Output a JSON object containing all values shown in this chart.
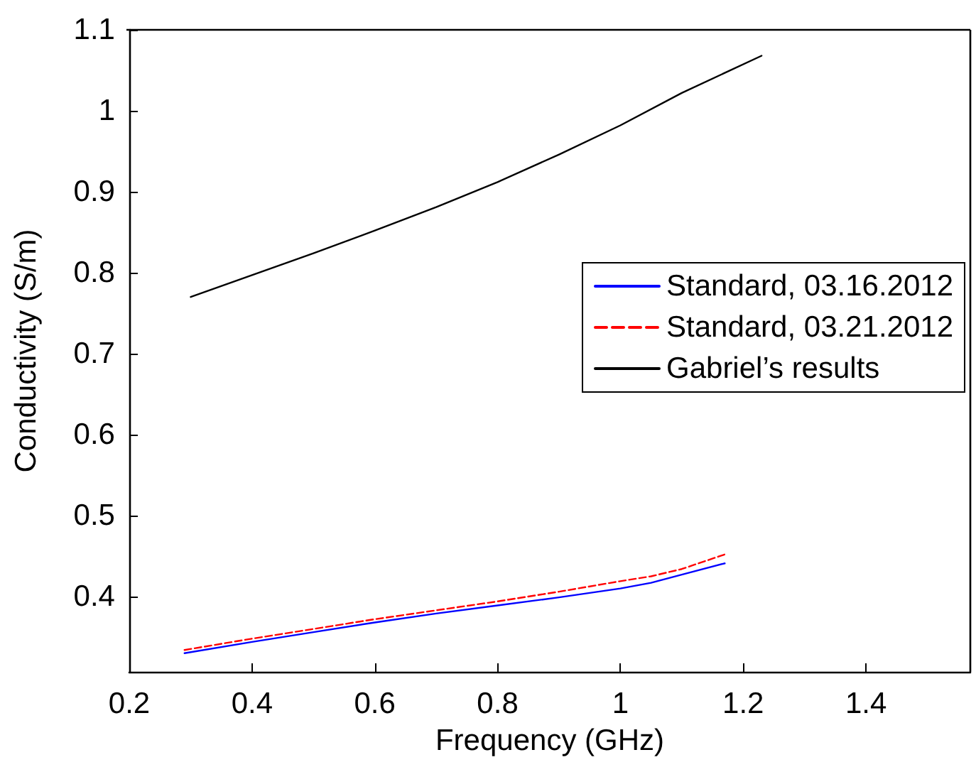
{
  "chart_data": {
    "type": "line",
    "xlabel": "Frequency (GHz)",
    "ylabel": "Conductivity (S/m)",
    "xlim": [
      0.2,
      1.57
    ],
    "ylim": [
      0.307,
      1.1
    ],
    "xticks": [
      0.2,
      0.4,
      0.6,
      0.8,
      1,
      1.2,
      1.4
    ],
    "yticks": [
      0.4,
      0.5,
      0.6,
      0.7,
      0.8,
      0.9,
      1,
      1.1
    ],
    "grid": false,
    "legend": "right",
    "marker": "none",
    "series": [
      {
        "name": "Standard, 03.16.2012",
        "color": "#0000ff",
        "line_style": "solid",
        "x": [
          0.29,
          0.4,
          0.5,
          0.6,
          0.7,
          0.8,
          0.9,
          1.0,
          1.05,
          1.1,
          1.17
        ],
        "values": [
          0.33,
          0.344,
          0.356,
          0.368,
          0.379,
          0.389,
          0.399,
          0.41,
          0.417,
          0.427,
          0.441
        ]
      },
      {
        "name": "Standard, 03.21.2012",
        "color": "#ff0000",
        "line_style": "dashed",
        "x": [
          0.29,
          0.4,
          0.5,
          0.6,
          0.7,
          0.8,
          0.9,
          1.0,
          1.05,
          1.1,
          1.17
        ],
        "values": [
          0.334,
          0.348,
          0.36,
          0.372,
          0.383,
          0.394,
          0.406,
          0.419,
          0.425,
          0.434,
          0.452
        ]
      },
      {
        "name": "Gabriel’s results",
        "color": "#000000",
        "line_style": "solid",
        "x": [
          0.3,
          0.4,
          0.5,
          0.6,
          0.7,
          0.8,
          0.9,
          1.0,
          1.1,
          1.23
        ],
        "values": [
          0.77,
          0.797,
          0.824,
          0.852,
          0.881,
          0.912,
          0.946,
          0.982,
          1.022,
          1.068
        ]
      }
    ]
  }
}
